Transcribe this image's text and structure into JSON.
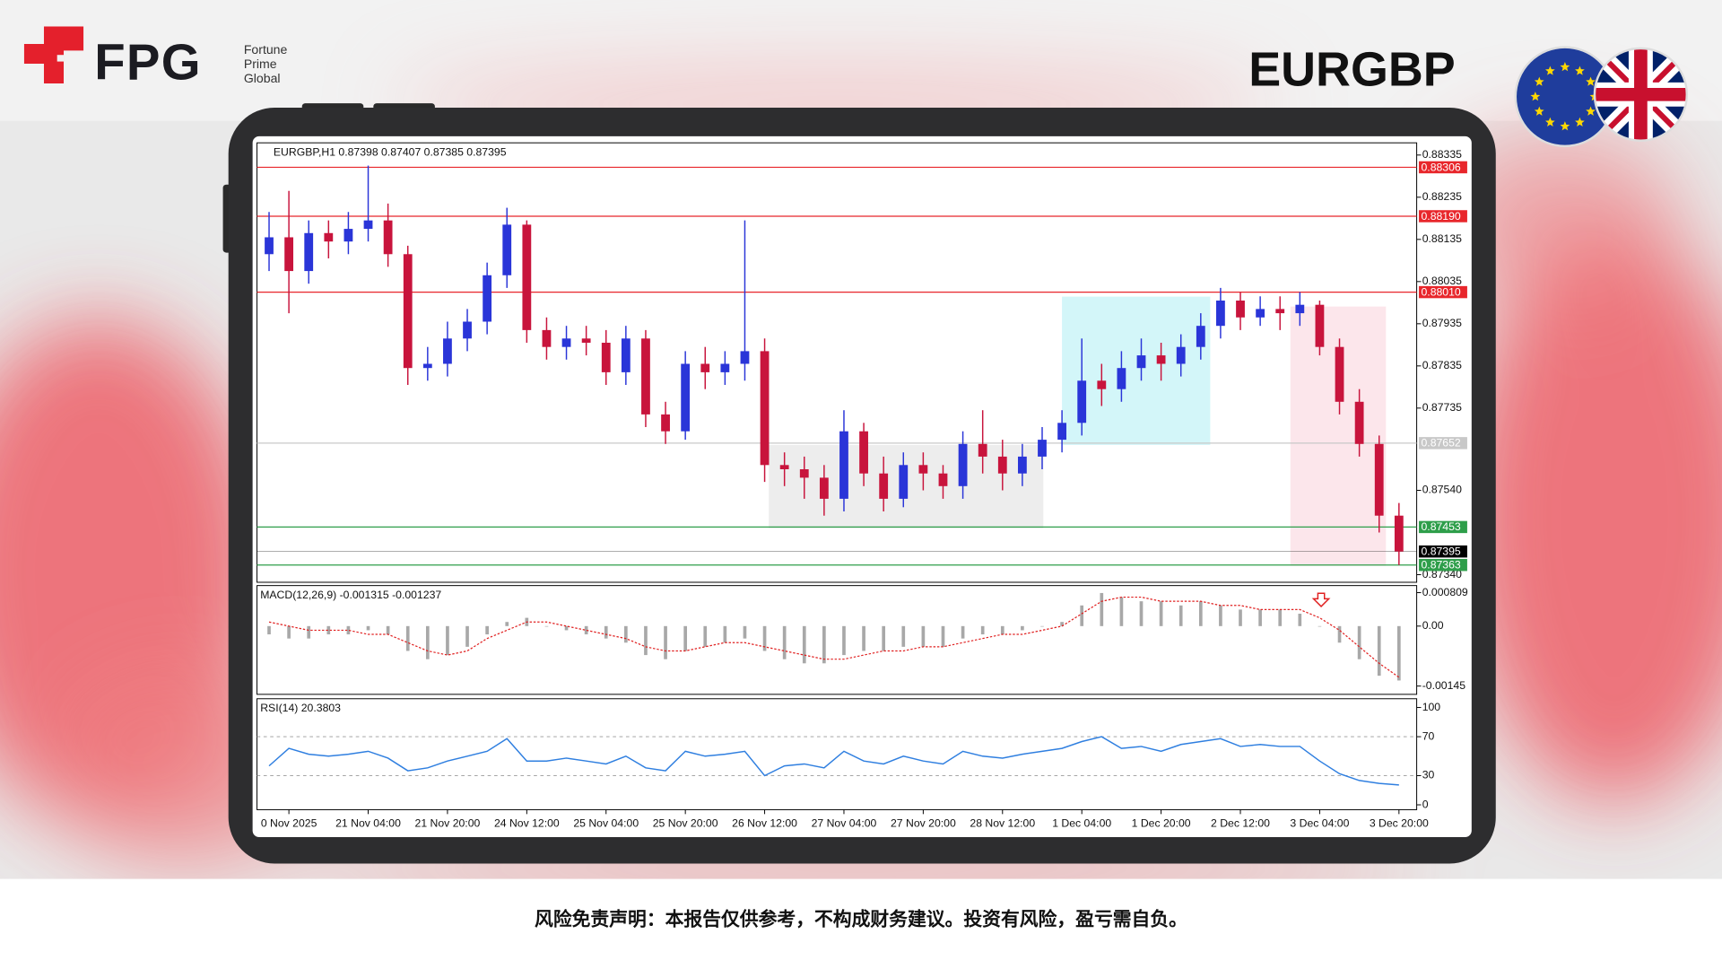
{
  "header": {
    "brand": "FPG",
    "brand_tagline": [
      "Fortune",
      "Prime",
      "Global"
    ],
    "symbol": "EURGBP"
  },
  "footer": {
    "disclaimer": "风险免责声明：本报告仅供参考，不构成财务建议。投资有风险，盈亏需自负。"
  },
  "chart_data": [
    {
      "type": "candlestick",
      "title": "EURGBP,H1 0.87398 0.87407 0.87385 0.87395",
      "up_color": "#2a35d8",
      "down_color": "#c8143c",
      "categories": [
        null,
        "0 Nov 2025",
        null,
        null,
        null,
        "21 Nov 04:00",
        null,
        null,
        null,
        "21 Nov 20:00",
        null,
        null,
        null,
        "24 Nov 12:00",
        null,
        null,
        null,
        "25 Nov 04:00",
        null,
        null,
        null,
        "25 Nov 20:00",
        null,
        null,
        null,
        "26 Nov 12:00",
        null,
        null,
        null,
        "27 Nov 04:00",
        null,
        null,
        null,
        "27 Nov 20:00",
        null,
        null,
        null,
        "28 Nov 12:00",
        null,
        null,
        null,
        "1 Dec 04:00",
        null,
        null,
        null,
        "1 Dec 20:00",
        null,
        null,
        null,
        "2 Dec 12:00",
        null,
        null,
        null,
        "3 Dec 04:00",
        null,
        null,
        null,
        "3 Dec 20:00"
      ],
      "open": [
        0.881,
        0.8814,
        0.8806,
        0.8815,
        0.8813,
        0.8816,
        0.8818,
        0.881,
        0.8783,
        0.8784,
        0.879,
        0.8794,
        0.8805,
        0.8817,
        0.8792,
        0.8788,
        0.879,
        0.8789,
        0.8782,
        0.879,
        0.8772,
        0.8768,
        0.8784,
        0.8782,
        0.8784,
        0.8787,
        0.876,
        0.8759,
        0.8757,
        0.8752,
        0.8768,
        0.8758,
        0.8752,
        0.876,
        0.8758,
        0.8755,
        0.8765,
        0.8762,
        0.8758,
        0.8762,
        0.8766,
        0.877,
        0.878,
        0.8778,
        0.8783,
        0.8786,
        0.8784,
        0.8788,
        0.8793,
        0.8799,
        0.8795,
        0.8797,
        0.8796,
        0.8798,
        0.8788,
        0.8775,
        0.8765,
        0.8748
      ],
      "high": [
        0.882,
        0.8825,
        0.8818,
        0.8818,
        0.882,
        0.8831,
        0.8822,
        0.8812,
        0.8788,
        0.8794,
        0.8797,
        0.8808,
        0.8821,
        0.8818,
        0.8795,
        0.8793,
        0.8793,
        0.8792,
        0.8793,
        0.8792,
        0.8775,
        0.8787,
        0.8788,
        0.8787,
        0.8818,
        0.879,
        0.8763,
        0.8762,
        0.876,
        0.8773,
        0.877,
        0.8762,
        0.8763,
        0.8763,
        0.876,
        0.8768,
        0.8773,
        0.8766,
        0.8765,
        0.8769,
        0.8773,
        0.879,
        0.8784,
        0.8787,
        0.879,
        0.8789,
        0.8791,
        0.8796,
        0.8802,
        0.8801,
        0.88,
        0.88,
        0.8801,
        0.8799,
        0.879,
        0.8778,
        0.8767,
        0.8751
      ],
      "low": [
        0.8806,
        0.8796,
        0.8803,
        0.8809,
        0.881,
        0.8813,
        0.8807,
        0.8779,
        0.878,
        0.8781,
        0.8787,
        0.8791,
        0.8802,
        0.8789,
        0.8785,
        0.8785,
        0.8786,
        0.8779,
        0.8779,
        0.8769,
        0.8765,
        0.8766,
        0.8778,
        0.8779,
        0.878,
        0.8756,
        0.8755,
        0.8752,
        0.8748,
        0.8749,
        0.8755,
        0.8749,
        0.875,
        0.8754,
        0.8752,
        0.8752,
        0.8758,
        0.8754,
        0.8755,
        0.8759,
        0.8763,
        0.8767,
        0.8774,
        0.8775,
        0.878,
        0.878,
        0.8781,
        0.8785,
        0.879,
        0.8792,
        0.8793,
        0.8792,
        0.8793,
        0.8786,
        0.8772,
        0.8762,
        0.8744,
        0.87363
      ],
      "close": [
        0.8814,
        0.8806,
        0.8815,
        0.8813,
        0.8816,
        0.8818,
        0.881,
        0.8783,
        0.8784,
        0.879,
        0.8794,
        0.8805,
        0.8817,
        0.8792,
        0.8788,
        0.879,
        0.8789,
        0.8782,
        0.879,
        0.8772,
        0.8768,
        0.8784,
        0.8782,
        0.8784,
        0.8787,
        0.876,
        0.8759,
        0.8757,
        0.8752,
        0.8768,
        0.8758,
        0.8752,
        0.876,
        0.8758,
        0.8755,
        0.8765,
        0.8762,
        0.8758,
        0.8762,
        0.8766,
        0.877,
        0.878,
        0.8778,
        0.8783,
        0.8786,
        0.8784,
        0.8788,
        0.8793,
        0.8799,
        0.8795,
        0.8797,
        0.8796,
        0.8798,
        0.8788,
        0.8775,
        0.8765,
        0.8748,
        0.87395
      ],
      "ylim": [
        0.87322,
        0.88364
      ],
      "yticks": [
        0.88335,
        0.88235,
        0.88135,
        0.88035,
        0.87935,
        0.87835,
        0.87735,
        {
          "value": 0.8754,
          "label": "0.87540"
        },
        {
          "value": 0.8734,
          "label": "0.87340"
        }
      ],
      "levels": [
        {
          "value": 0.88306,
          "color": "#e8262b"
        },
        {
          "value": 0.8819,
          "label": "0.88190",
          "color": "#e8262b"
        },
        {
          "value": 0.8801,
          "label": "0.88010",
          "color": "#e8262b"
        },
        {
          "value": 0.87652,
          "color": "#c8c8c8"
        },
        {
          "value": 0.87453,
          "color": "#2e9e4a"
        },
        {
          "value": 0.87395,
          "color": "#000000"
        },
        {
          "value": 0.87363,
          "color": "#2e9e4a"
        }
      ]
    },
    {
      "type": "combo",
      "title": "MACD(12,26,9) -0.001315 -0.001237",
      "series": [
        {
          "type": "bar",
          "color": "#a8a8a8",
          "values": [
            -0.0002,
            -0.0003,
            -0.0003,
            -0.0002,
            -0.0002,
            -0.0001,
            -0.0002,
            -0.0006,
            -0.0008,
            -0.0007,
            -0.0005,
            -0.0002,
            0.0001,
            0.0002,
            0.0,
            -0.0001,
            -0.0002,
            -0.0003,
            -0.0004,
            -0.0007,
            -0.0008,
            -0.0006,
            -0.0005,
            -0.0004,
            -0.0003,
            -0.0006,
            -0.0008,
            -0.0009,
            -0.0009,
            -0.0007,
            -0.0006,
            -0.0006,
            -0.0005,
            -0.0005,
            -0.0005,
            -0.0003,
            -0.0002,
            -0.0002,
            -0.0001,
            0.0,
            0.0001,
            0.0005,
            0.0008,
            0.0007,
            0.0006,
            0.0006,
            0.0005,
            0.0006,
            0.0005,
            0.0004,
            0.0004,
            0.0004,
            0.0003,
            0.0,
            -0.0004,
            -0.0008,
            -0.0012,
            -0.001315
          ]
        },
        {
          "type": "line",
          "color": "#e02020",
          "values": [
            0.0001,
            0.0,
            -0.0001,
            -0.0001,
            -0.0001,
            -0.0002,
            -0.0002,
            -0.0004,
            -0.0006,
            -0.0007,
            -0.0006,
            -0.0003,
            -0.0001,
            0.0001,
            0.0001,
            0.0,
            -0.0001,
            -0.0002,
            -0.0003,
            -0.0005,
            -0.0006,
            -0.0006,
            -0.0005,
            -0.0004,
            -0.0004,
            -0.0005,
            -0.0006,
            -0.0007,
            -0.0008,
            -0.0008,
            -0.0007,
            -0.0006,
            -0.0006,
            -0.0005,
            -0.0005,
            -0.0004,
            -0.0003,
            -0.0002,
            -0.0002,
            -0.0001,
            0.0,
            0.0003,
            0.0006,
            0.0007,
            0.0007,
            0.0006,
            0.0006,
            0.0006,
            0.0005,
            0.0005,
            0.0004,
            0.0004,
            0.0004,
            0.0002,
            -0.0001,
            -0.0005,
            -0.0009,
            -0.001237
          ]
        }
      ],
      "ylim": [
        -0.00165,
        0.00098
      ],
      "yticks": [
        0.000809,
        {
          "value": 0,
          "label": "0.00"
        },
        -0.00145
      ]
    },
    {
      "type": "line",
      "title": "RSI(14) 20.3803",
      "color": "#2f7fe0",
      "values": [
        40,
        58,
        52,
        50,
        52,
        55,
        48,
        35,
        38,
        45,
        50,
        55,
        68,
        45,
        45,
        48,
        45,
        42,
        50,
        38,
        35,
        55,
        50,
        52,
        55,
        30,
        40,
        42,
        38,
        55,
        45,
        42,
        50,
        45,
        42,
        55,
        50,
        48,
        52,
        55,
        58,
        65,
        70,
        58,
        60,
        55,
        62,
        65,
        68,
        60,
        62,
        60,
        60,
        45,
        32,
        25,
        22,
        20.3803
      ],
      "ylim": [
        -5,
        109
      ],
      "yticks": [
        100,
        70,
        30,
        0
      ],
      "levels": [
        70,
        30
      ]
    }
  ]
}
